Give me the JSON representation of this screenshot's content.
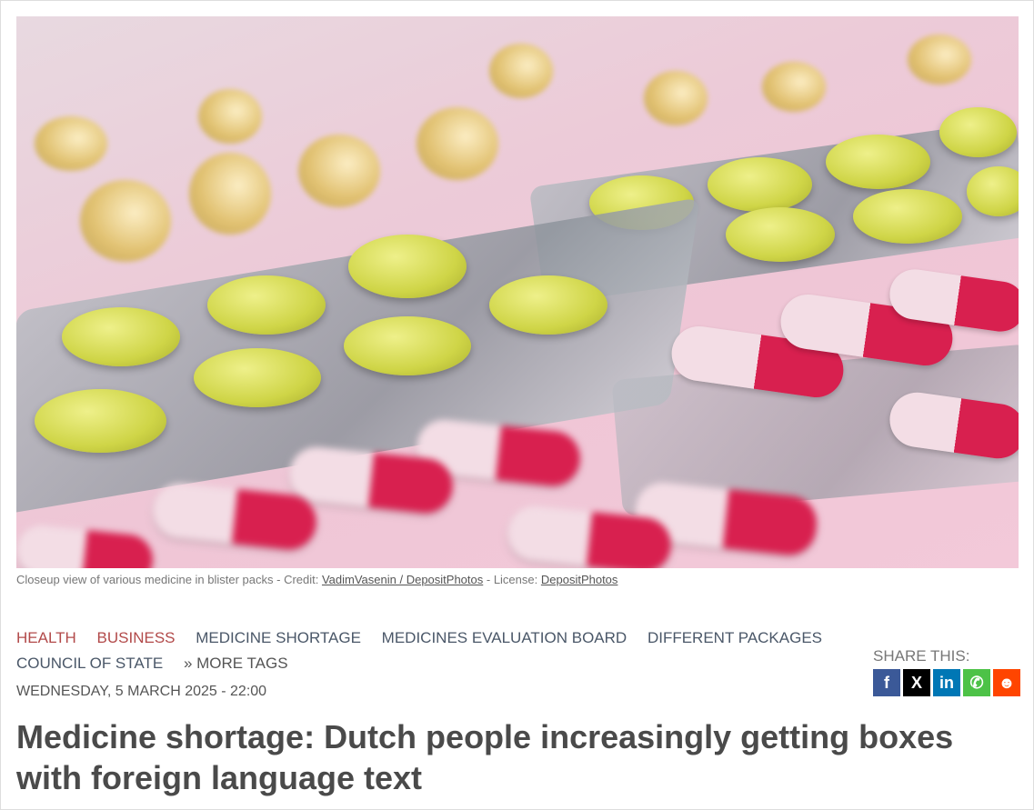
{
  "image": {
    "alt": "Closeup view of various medicine in blister packs"
  },
  "caption": {
    "text": "Closeup view of various medicine in blister packs - Credit: ",
    "credit_link": "VadimVasenin / DepositPhotos",
    "license_prefix": " - License: ",
    "license_link": "DepositPhotos"
  },
  "tags": {
    "categories": [
      "HEALTH",
      "BUSINESS"
    ],
    "items": [
      "MEDICINE SHORTAGE",
      "MEDICINES EVALUATION BOARD",
      "DIFFERENT PACKAGES",
      "COUNCIL OF STATE"
    ],
    "more": "» MORE TAGS"
  },
  "date": "WEDNESDAY, 5 MARCH 2025 - 22:00",
  "title": "Medicine shortage: Dutch people increasingly getting boxes with foreign language text",
  "share": {
    "label": "SHARE THIS:",
    "buttons": [
      {
        "icon": "facebook-icon",
        "glyph": "f",
        "color": "#3b5998"
      },
      {
        "icon": "x-icon",
        "glyph": "X",
        "color": "#000000"
      },
      {
        "icon": "linkedin-icon",
        "glyph": "in",
        "color": "#0077b5"
      },
      {
        "icon": "whatsapp-icon",
        "glyph": "✆",
        "color": "#4dc247"
      },
      {
        "icon": "reddit-icon",
        "glyph": "☻",
        "color": "#ff4500"
      }
    ]
  },
  "colors": {
    "category_tag": "#b24a4a",
    "tag": "#4a5768",
    "title": "#4a4a4a"
  }
}
